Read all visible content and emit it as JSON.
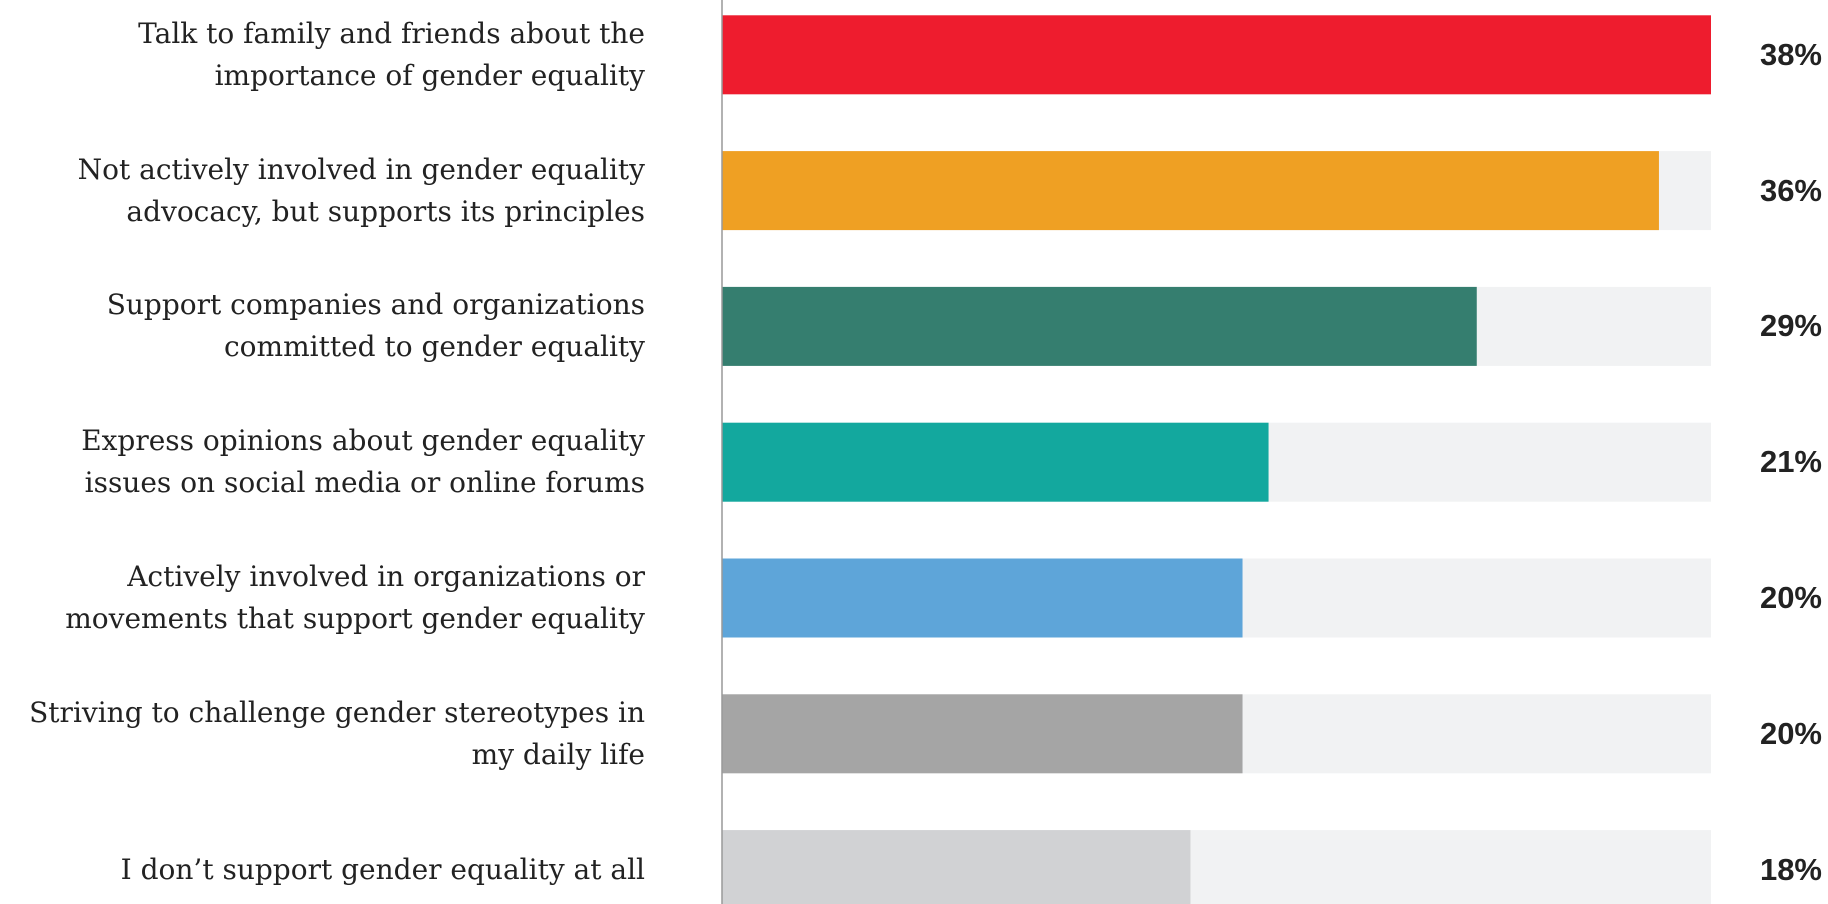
{
  "chart_data": {
    "type": "hbar",
    "categories": [
      "Talk to family and friends about the importance of gender equality",
      "Not actively involved in gender equality advocacy, but supports its principles",
      "Support companies and organizations committed to gender equality",
      "Express opinions about gender equality issues on social media or online forums",
      "Actively involved in organizations or movements that support gender equality",
      "Striving to challenge gender stereotypes in my daily life",
      "I don’t support gender equality at all"
    ],
    "values": [
      38,
      36,
      29,
      21,
      20,
      20,
      18
    ],
    "value_labels": [
      "38%",
      "36%",
      "29%",
      "21%",
      "20%",
      "20%",
      "18%"
    ],
    "colors": [
      "#ee1c2e",
      "#efa023",
      "#357e6f",
      "#13a89e",
      "#5ea5d9",
      "#a5a5a5",
      "#d1d2d4"
    ],
    "track_color": "#f1f2f3",
    "xlim": [
      0,
      38
    ]
  }
}
